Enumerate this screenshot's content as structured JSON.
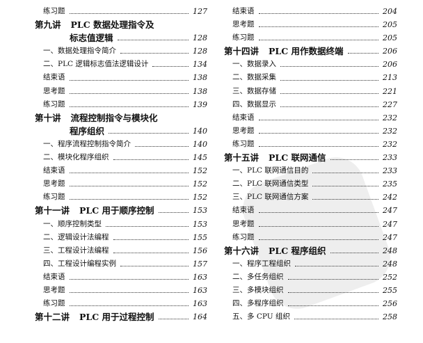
{
  "left_column": [
    {
      "level": "sub",
      "title": "练习题",
      "page": "127"
    },
    {
      "level": "chap",
      "num": "第九讲",
      "title": "PLC 数据处理指令及"
    },
    {
      "level": "cont",
      "title": "标志值逻辑",
      "page": "128"
    },
    {
      "level": "sub",
      "title": "一、数据处理指令简介",
      "page": "128"
    },
    {
      "level": "sub",
      "title": "二、PLC 逻辑标志值法逻辑设计",
      "page": "134"
    },
    {
      "level": "sub",
      "title": "结束语",
      "page": "138"
    },
    {
      "level": "sub",
      "title": "思考题",
      "page": "138"
    },
    {
      "level": "sub",
      "title": "练习题",
      "page": "139"
    },
    {
      "level": "chap",
      "num": "第十讲",
      "title": "流程控制指令与模块化"
    },
    {
      "level": "cont",
      "title": "程序组织",
      "page": "140"
    },
    {
      "level": "sub",
      "title": "一、程序流程控制指令简介",
      "page": "140"
    },
    {
      "level": "sub",
      "title": "二、模块化程序组织",
      "page": "145"
    },
    {
      "level": "sub",
      "title": "结束语",
      "page": "152"
    },
    {
      "level": "sub",
      "title": "思考题",
      "page": "152"
    },
    {
      "level": "sub",
      "title": "练习题",
      "page": "152"
    },
    {
      "level": "chap",
      "num": "第十一讲",
      "title": "PLC 用于顺序控制",
      "page": "153"
    },
    {
      "level": "sub",
      "title": "一、顺序控制类型",
      "page": "153"
    },
    {
      "level": "sub",
      "title": "二、逻辑设计法编程",
      "page": "155"
    },
    {
      "level": "sub",
      "title": "三、工程设计法编程",
      "page": "156"
    },
    {
      "level": "sub",
      "title": "四、工程设计编程实例",
      "page": "157"
    },
    {
      "level": "sub",
      "title": "结束语",
      "page": "163"
    },
    {
      "level": "sub",
      "title": "思考题",
      "page": "163"
    },
    {
      "level": "sub",
      "title": "练习题",
      "page": "163"
    },
    {
      "level": "chap",
      "num": "第十二讲",
      "title": "PLC 用于过程控制",
      "page": "164"
    }
  ],
  "right_column": [
    {
      "level": "sub",
      "title": "结束语",
      "page": "204"
    },
    {
      "level": "sub",
      "title": "思考题",
      "page": "205"
    },
    {
      "level": "sub",
      "title": "练习题",
      "page": "205"
    },
    {
      "level": "chap",
      "num": "第十四讲",
      "title": "PLC 用作数据终端",
      "page": "206"
    },
    {
      "level": "sub",
      "title": "一、数据录入",
      "page": "206"
    },
    {
      "level": "sub",
      "title": "二、数据采集",
      "page": "213"
    },
    {
      "level": "sub",
      "title": "三、数据存储",
      "page": "221"
    },
    {
      "level": "sub",
      "title": "四、数据显示",
      "page": "227"
    },
    {
      "level": "sub",
      "title": "结束语",
      "page": "232"
    },
    {
      "level": "sub",
      "title": "思考题",
      "page": "232"
    },
    {
      "level": "sub",
      "title": "练习题",
      "page": "232"
    },
    {
      "level": "chap",
      "num": "第十五讲",
      "title": "PLC 联网通信",
      "page": "233"
    },
    {
      "level": "sub",
      "title": "一、PLC 联网通信目的",
      "page": "233"
    },
    {
      "level": "sub",
      "title": "二、PLC 联网通信类型",
      "page": "235"
    },
    {
      "level": "sub",
      "title": "三、PLC 联网通信方案",
      "page": "242"
    },
    {
      "level": "sub",
      "title": "结束语",
      "page": "247"
    },
    {
      "level": "sub",
      "title": "思考题",
      "page": "247"
    },
    {
      "level": "sub",
      "title": "练习题",
      "page": "247"
    },
    {
      "level": "chap",
      "num": "第十六讲",
      "title": "PLC 程序组织",
      "page": "248"
    },
    {
      "level": "sub",
      "title": "一、程序工程组织",
      "page": "248"
    },
    {
      "level": "sub",
      "title": "二、多任务组织",
      "page": "252"
    },
    {
      "level": "sub",
      "title": "三、多模块组织",
      "page": "255"
    },
    {
      "level": "sub",
      "title": "四、多程序组织",
      "page": "256"
    },
    {
      "level": "sub",
      "title": "五、多 CPU 组织",
      "page": "258"
    }
  ]
}
